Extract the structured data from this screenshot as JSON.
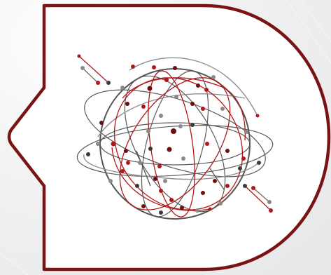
{
  "colors": {
    "frame_stroke": "#7a1414",
    "frame_fill": "#ffffff",
    "globe_stroke": "#555555",
    "orbit_dark": "#5a5a5a",
    "orbit_light": "#8e8e8e",
    "orbit_red": "#b01818",
    "node_red": "#b01818",
    "node_darkred": "#6e0d0d",
    "node_gray": "#8a8a8a",
    "node_dark": "#3a3a3a"
  },
  "icons": {
    "frame": "d-shaped-badge-frame",
    "illustration": "network-globe-icon"
  }
}
